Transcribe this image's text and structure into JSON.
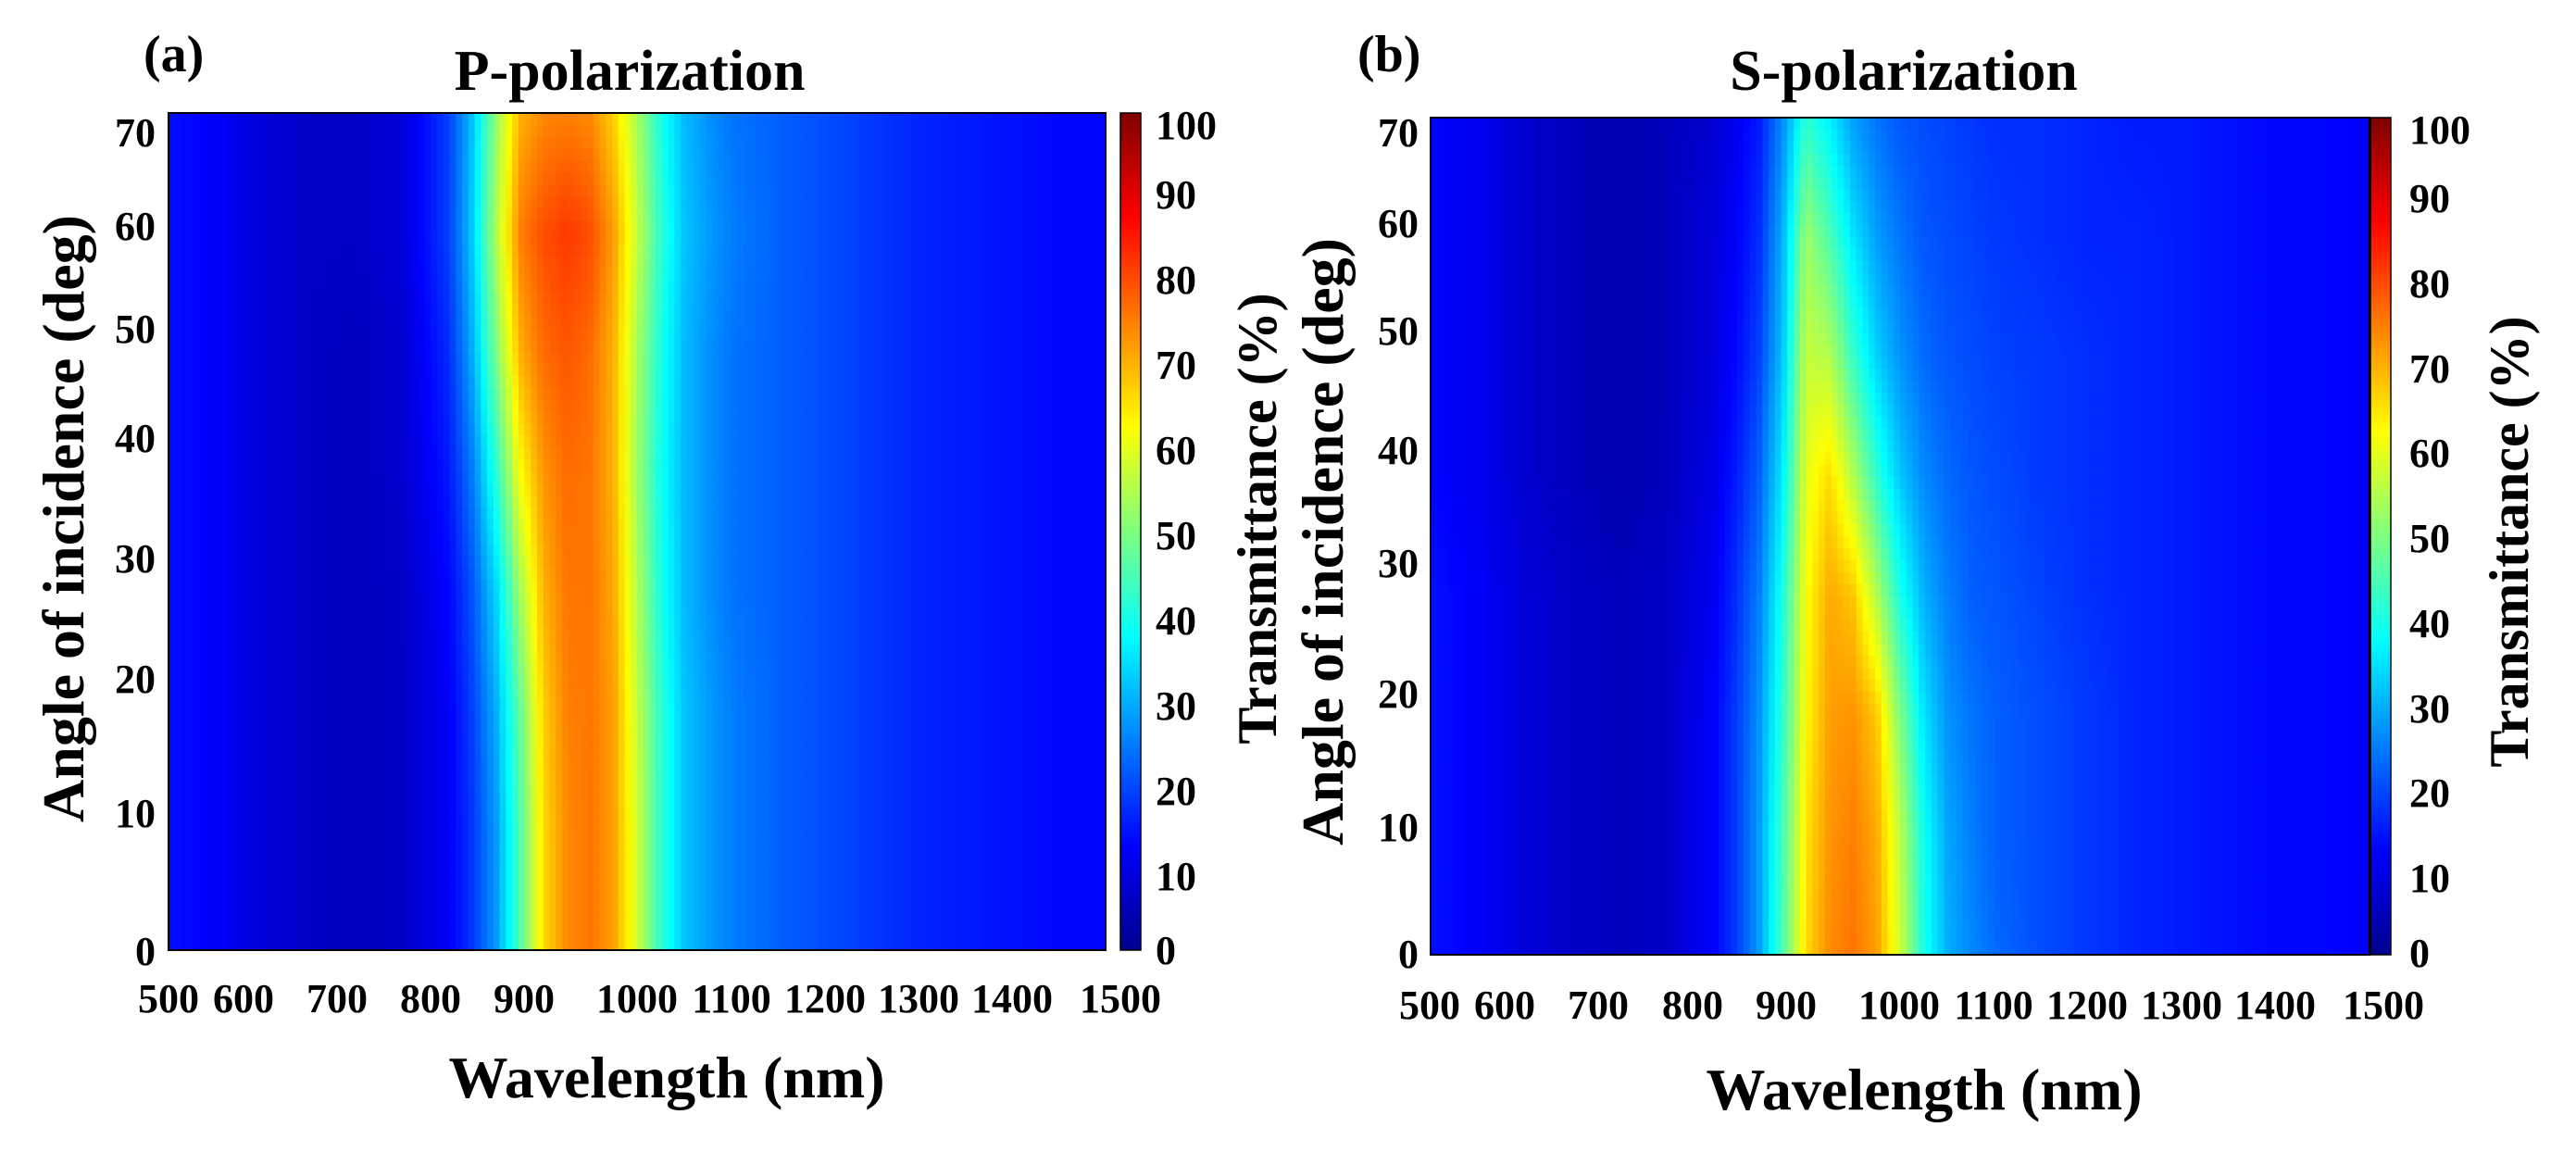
{
  "chart_data": [
    {
      "type": "heatmap",
      "panel_label": "(a)",
      "title": "P-polarization",
      "xlabel": "Wavelength (nm)",
      "ylabel": "Angle of incidence (deg)",
      "colorbar_label": "Transmittance (%)",
      "xlim": [
        500,
        1500
      ],
      "ylim": [
        0,
        70
      ],
      "zlim": [
        0,
        100
      ],
      "x_ticks": [
        "500",
        "600",
        "700",
        "800",
        "900",
        "1000",
        "1100",
        "1200",
        "1300",
        "1400",
        "1500"
      ],
      "y_ticks": [
        "0",
        "10",
        "20",
        "30",
        "40",
        "50",
        "60",
        "70"
      ],
      "colorbar_ticks": [
        "0",
        "10",
        "20",
        "30",
        "40",
        "50",
        "60",
        "70",
        "80",
        "90",
        "100"
      ],
      "colormap": "jet",
      "wavelength_nm": [
        500,
        550,
        600,
        650,
        700,
        750,
        800,
        825,
        850,
        875,
        900,
        925,
        950,
        975,
        1000,
        1025,
        1050,
        1075,
        1100,
        1150,
        1200,
        1250,
        1300,
        1350,
        1400,
        1450,
        1500
      ],
      "angle_deg": [
        0,
        10,
        20,
        30,
        40,
        50,
        60,
        70
      ],
      "transmittance_pct": [
        [
          14,
          12,
          9,
          7,
          6,
          7,
          12,
          18,
          28,
          45,
          66,
          74,
          76,
          72,
          58,
          42,
          32,
          28,
          25,
          22,
          20,
          18,
          16,
          15,
          14,
          13,
          13
        ],
        [
          14,
          12,
          9,
          7,
          6,
          7,
          12,
          18,
          28,
          45,
          66,
          74,
          76,
          72,
          58,
          42,
          32,
          28,
          25,
          22,
          20,
          18,
          16,
          15,
          14,
          13,
          13
        ],
        [
          14,
          12,
          9,
          7,
          6,
          7,
          12,
          19,
          30,
          47,
          67,
          75,
          76,
          72,
          57,
          42,
          32,
          28,
          25,
          22,
          20,
          18,
          16,
          15,
          14,
          13,
          13
        ],
        [
          14,
          12,
          9,
          7,
          6,
          7,
          13,
          21,
          34,
          53,
          70,
          76,
          76,
          71,
          55,
          40,
          31,
          27,
          24,
          22,
          20,
          18,
          16,
          15,
          14,
          13,
          13
        ],
        [
          14,
          12,
          9,
          7,
          6,
          8,
          15,
          25,
          42,
          62,
          73,
          77,
          76,
          70,
          53,
          39,
          31,
          27,
          24,
          22,
          20,
          18,
          16,
          15,
          14,
          13,
          13
        ],
        [
          14,
          12,
          9,
          7,
          6,
          8,
          17,
          30,
          50,
          70,
          77,
          79,
          77,
          70,
          54,
          40,
          31,
          27,
          24,
          22,
          20,
          18,
          16,
          15,
          14,
          13,
          13
        ],
        [
          14,
          12,
          9,
          7,
          7,
          9,
          19,
          33,
          55,
          75,
          80,
          82,
          80,
          72,
          57,
          42,
          32,
          28,
          25,
          22,
          20,
          18,
          16,
          15,
          14,
          13,
          13
        ],
        [
          14,
          12,
          9,
          7,
          7,
          9,
          19,
          32,
          52,
          70,
          74,
          75,
          74,
          67,
          54,
          40,
          31,
          27,
          24,
          22,
          20,
          18,
          16,
          15,
          14,
          13,
          13
        ]
      ]
    },
    {
      "type": "heatmap",
      "panel_label": "(b)",
      "title": "S-polarization",
      "xlabel": "Wavelength (nm)",
      "ylabel": "Angle of incidence (deg)",
      "colorbar_label": "Transmittance (%)",
      "xlim": [
        500,
        1500
      ],
      "ylim": [
        0,
        70
      ],
      "zlim": [
        0,
        100
      ],
      "x_ticks": [
        "500",
        "600",
        "700",
        "800",
        "900",
        "1000",
        "1100",
        "1200",
        "1300",
        "1400",
        "1500"
      ],
      "y_ticks": [
        "0",
        "10",
        "20",
        "30",
        "40",
        "50",
        "60",
        "70"
      ],
      "colorbar_ticks": [
        "0",
        "10",
        "20",
        "30",
        "40",
        "50",
        "60",
        "70",
        "80",
        "90",
        "100"
      ],
      "colormap": "jet",
      "wavelength_nm": [
        500,
        550,
        600,
        650,
        700,
        750,
        800,
        825,
        850,
        875,
        900,
        925,
        950,
        975,
        1000,
        1025,
        1050,
        1075,
        1100,
        1150,
        1200,
        1250,
        1300,
        1350,
        1400,
        1450,
        1500
      ],
      "angle_deg": [
        0,
        10,
        20,
        30,
        40,
        50,
        60,
        70
      ],
      "transmittance_pct": [
        [
          14,
          12,
          9,
          7,
          6,
          7,
          12,
          18,
          28,
          45,
          66,
          74,
          76,
          72,
          58,
          40,
          30,
          26,
          23,
          20,
          18,
          16,
          15,
          14,
          13,
          13,
          12
        ],
        [
          14,
          12,
          9,
          7,
          6,
          7,
          12,
          18,
          28,
          44,
          65,
          73,
          75,
          71,
          56,
          39,
          29,
          25,
          22,
          20,
          18,
          16,
          15,
          14,
          13,
          13,
          12
        ],
        [
          14,
          12,
          9,
          7,
          6,
          7,
          12,
          18,
          27,
          42,
          63,
          72,
          73,
          68,
          50,
          35,
          27,
          24,
          22,
          20,
          18,
          16,
          15,
          14,
          13,
          13,
          12
        ],
        [
          14,
          12,
          9,
          7,
          6,
          7,
          11,
          17,
          25,
          40,
          62,
          71,
          68,
          55,
          40,
          30,
          25,
          22,
          21,
          19,
          17,
          16,
          15,
          14,
          13,
          13,
          12
        ],
        [
          13,
          11,
          8,
          6,
          5,
          6,
          10,
          15,
          22,
          36,
          60,
          66,
          55,
          42,
          32,
          26,
          23,
          21,
          20,
          18,
          17,
          16,
          15,
          14,
          13,
          13,
          12
        ],
        [
          13,
          11,
          8,
          6,
          5,
          6,
          9,
          13,
          19,
          32,
          57,
          55,
          43,
          33,
          27,
          23,
          21,
          20,
          19,
          18,
          17,
          16,
          15,
          14,
          13,
          13,
          12
        ],
        [
          13,
          11,
          8,
          6,
          5,
          6,
          9,
          12,
          17,
          30,
          53,
          45,
          35,
          28,
          24,
          21,
          20,
          19,
          18,
          17,
          16,
          16,
          15,
          14,
          13,
          13,
          12
        ],
        [
          13,
          11,
          8,
          6,
          5,
          6,
          8,
          11,
          15,
          26,
          42,
          36,
          28,
          24,
          21,
          20,
          19,
          18,
          17,
          17,
          16,
          15,
          15,
          14,
          13,
          13,
          12
        ]
      ]
    }
  ]
}
